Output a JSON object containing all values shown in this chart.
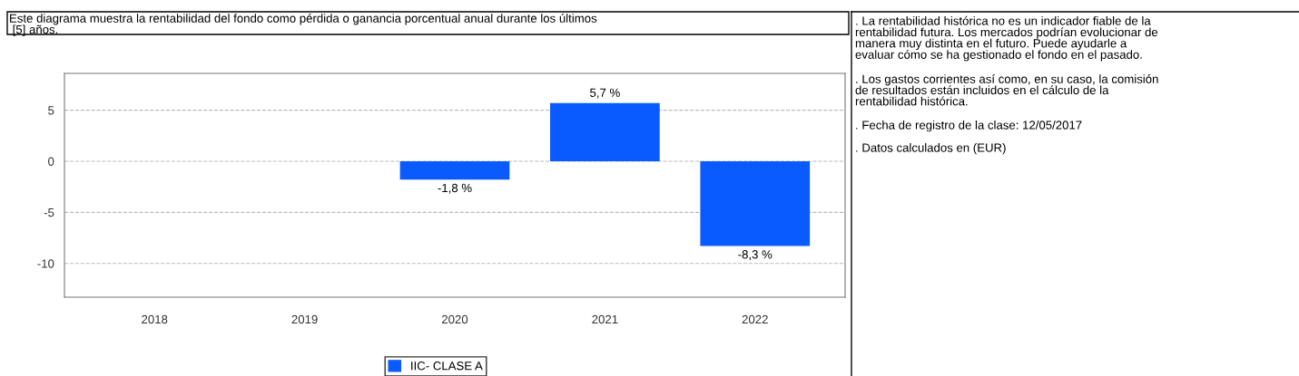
{
  "chart_data": {
    "type": "bar",
    "title": "Este diagrama muestra la rentabilidad del fondo como pérdida o ganancia porcentual anual durante los últimos\n [5] años.",
    "categories": [
      "2018",
      "2019",
      "2020",
      "2021",
      "2022"
    ],
    "series": [
      {
        "name": "IIC- CLASE A",
        "color": "#0a5bff",
        "values": [
          null,
          null,
          -1.8,
          5.7,
          -8.3
        ],
        "value_labels": [
          null,
          null,
          "-1,8 %",
          "5,7 %",
          "-8,3 %"
        ]
      }
    ],
    "ylim": [
      -13.3,
      8.6
    ],
    "yticks": [
      -10,
      -5,
      0,
      5
    ],
    "grid": "y",
    "legend": "bottom",
    "annotations": [
      ". La rentabilidad histórica no es un indicador fiable de la\nrentabilidad futura. Los mercados podrían evolucionar de\nmanera muy distinta en el futuro. Puede ayudarle a\nevaluar cómo se ha gestionado el fondo en el pasado.",
      ". Los gastos corrientes así como, en su caso, la comisión\nde resultados están incluidos en el cálculo de la\nrentabilidad histórica.",
      ". Fecha de registro de la clase: 12/05/2017",
      ". Datos calculados en (EUR)"
    ]
  }
}
